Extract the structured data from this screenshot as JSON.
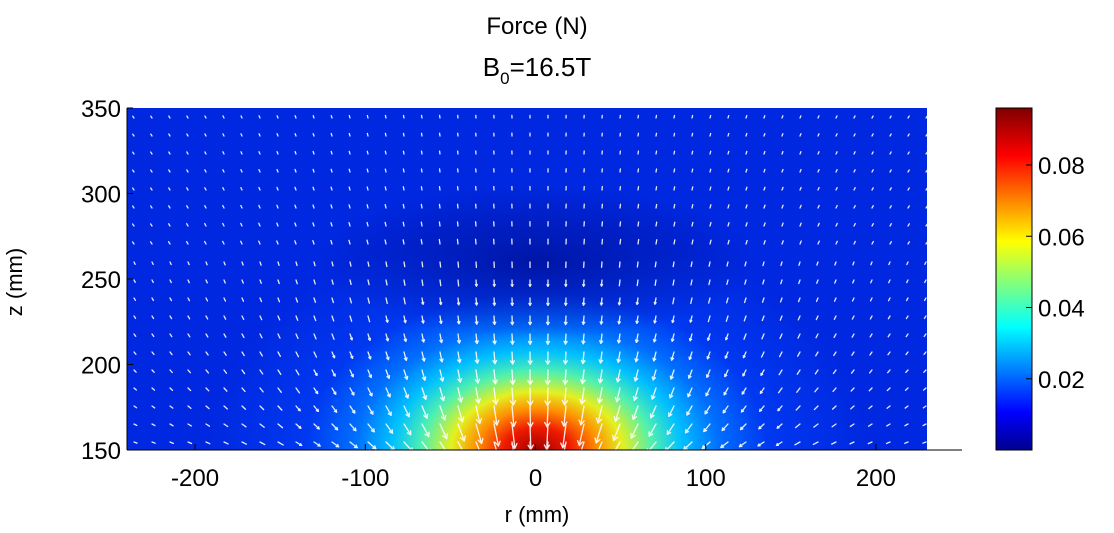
{
  "chart_data": {
    "type": "heatmap",
    "title": "Force (N)",
    "subtitle_base": "B",
    "subtitle_subscript": "0",
    "subtitle_rest": "=16.5T",
    "xlabel": "r (mm)",
    "ylabel": "z (mm)",
    "xlim": [
      -240,
      230
    ],
    "ylim": [
      150,
      350
    ],
    "x_ticks": [
      -200,
      -100,
      0,
      100,
      200
    ],
    "y_ticks": [
      150,
      200,
      250,
      300,
      350
    ],
    "grid": false,
    "overlay": "white force-direction vector arrows (quiver)",
    "peak_location": {
      "r": 0,
      "z": 150
    },
    "colorbar": {
      "colormap": "jet",
      "min": 0,
      "max": 0.096,
      "ticks": [
        0.02,
        0.04,
        0.06,
        0.08
      ],
      "tick_labels": [
        "0.02",
        "0.04",
        "0.06",
        "0.08"
      ],
      "colors": [
        "#00008f",
        "#0000ff",
        "#00ffff",
        "#ffff00",
        "#ff0000",
        "#800000"
      ]
    }
  }
}
